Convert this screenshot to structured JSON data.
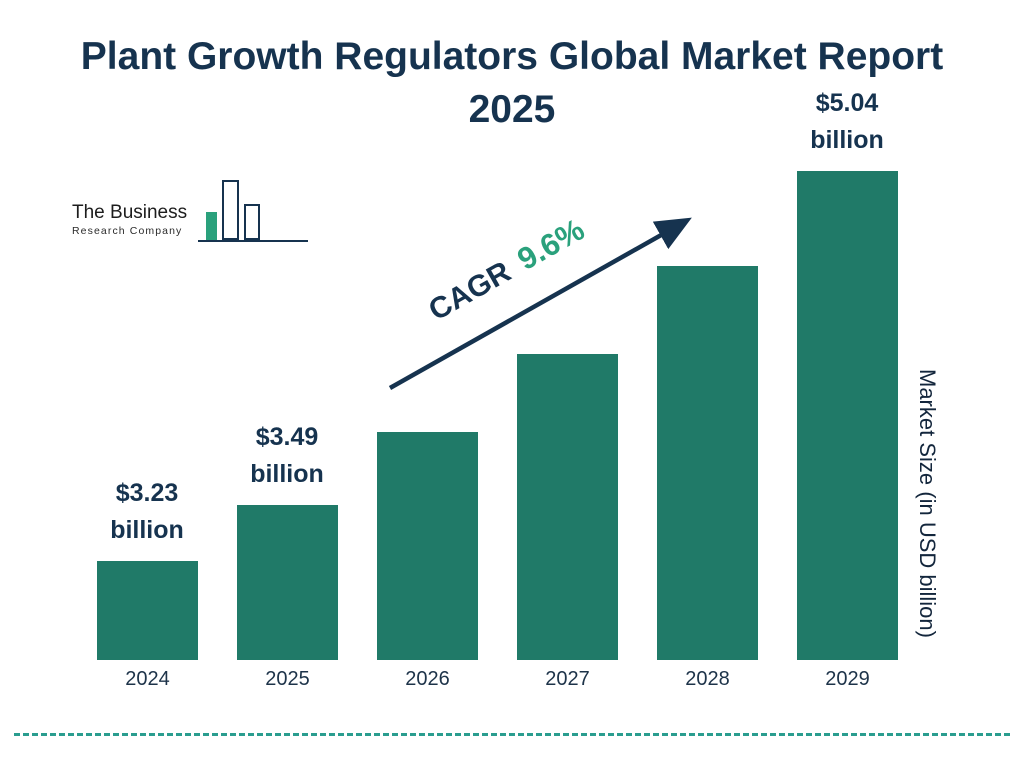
{
  "title": "Plant Growth Regulators Global Market Report 2025",
  "logo": {
    "name_line1": "The Business",
    "name_line2": "Research Company"
  },
  "annotation": {
    "label": "CAGR",
    "value": "9.6%"
  },
  "y_axis_label": "Market Size (in USD billion)",
  "colors": {
    "bar": "#207a68",
    "navy": "#16334f",
    "green": "#2aa17c",
    "dash": "#2a9d8f"
  },
  "chart_data": {
    "type": "bar",
    "title": "Plant Growth Regulators Global Market Report 2025",
    "categories": [
      "2024",
      "2025",
      "2026",
      "2027",
      "2028",
      "2029"
    ],
    "values": [
      3.23,
      3.49,
      3.83,
      4.19,
      4.6,
      5.04
    ],
    "unit": "USD billion",
    "bar_labels": [
      "$3.23 billion",
      "$3.49 billion",
      "",
      "",
      "",
      "$5.04 billion"
    ],
    "cagr": "9.6%",
    "xlabel": "",
    "ylabel": "Market Size (in USD billion)",
    "legend": false,
    "grid": false
  }
}
